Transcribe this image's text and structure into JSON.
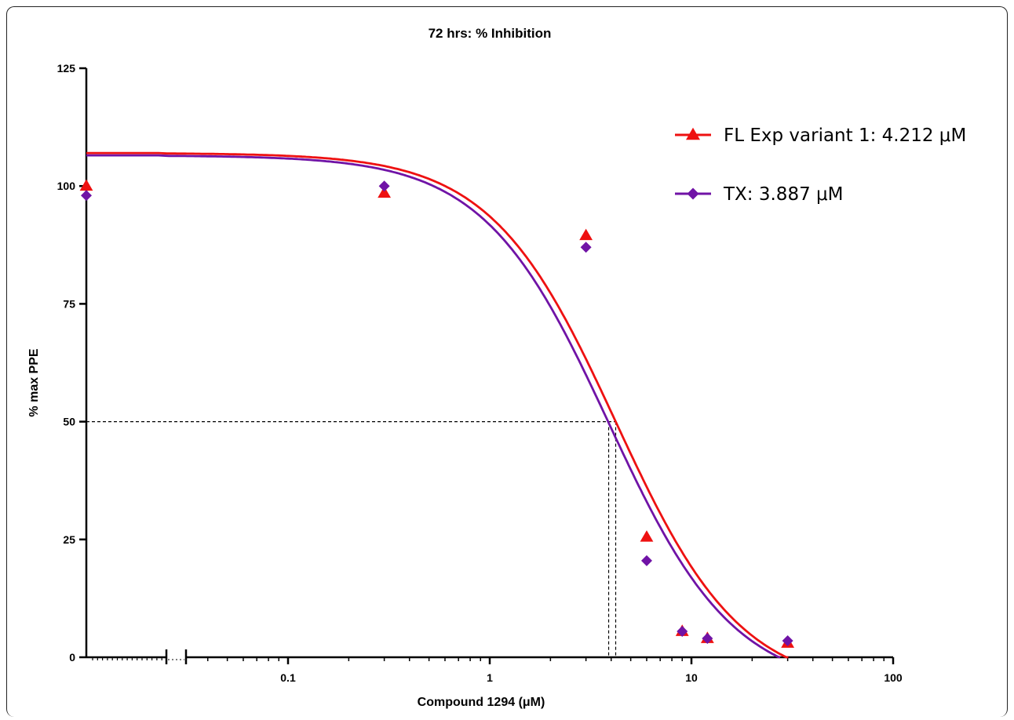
{
  "chart_data": {
    "type": "scatter",
    "title": "72 hrs: % Inhibition",
    "xlabel": "Compound 1294 (μM)",
    "ylabel": "% max PPE",
    "x_scale": "log",
    "x_axis_break": true,
    "xlim": [
      0.01,
      100
    ],
    "ylim": [
      0,
      125
    ],
    "x_ticks": [
      {
        "value": 0.1,
        "label": "0.1"
      },
      {
        "value": 1,
        "label": "1"
      },
      {
        "value": 10,
        "label": "10"
      },
      {
        "value": 100,
        "label": "100"
      }
    ],
    "y_ticks": [
      {
        "value": 0,
        "label": "0"
      },
      {
        "value": 25,
        "label": "25"
      },
      {
        "value": 50,
        "label": "50"
      },
      {
        "value": 75,
        "label": "75"
      },
      {
        "value": 100,
        "label": "100"
      },
      {
        "value": 125,
        "label": "125"
      }
    ],
    "grid": false,
    "legend_position": "top-right",
    "reference_level": 50,
    "series": [
      {
        "name": "FL Exp variant 1: 4.212 μM",
        "color": "#ee1111",
        "marker": "triangle",
        "ic50": 4.212,
        "points": [
          {
            "x": 0.01,
            "y": 100
          },
          {
            "x": 0.3,
            "y": 98.5
          },
          {
            "x": 3,
            "y": 89.5
          },
          {
            "x": 6,
            "y": 25.5
          },
          {
            "x": 9,
            "y": 5.5
          },
          {
            "x": 12,
            "y": 4
          },
          {
            "x": 30,
            "y": 3
          }
        ],
        "fit": {
          "top": 107,
          "bottom": -7,
          "ic50": 4.212,
          "hill": 1.4
        }
      },
      {
        "name": "TX: 3.887 μM",
        "color": "#7013a6",
        "marker": "diamond",
        "ic50": 3.887,
        "points": [
          {
            "x": 0.01,
            "y": 98
          },
          {
            "x": 0.3,
            "y": 100
          },
          {
            "x": 3,
            "y": 87
          },
          {
            "x": 6,
            "y": 20.5
          },
          {
            "x": 9,
            "y": 5.5
          },
          {
            "x": 12,
            "y": 4
          },
          {
            "x": 30,
            "y": 3.5
          }
        ],
        "fit": {
          "top": 106.5,
          "bottom": -7,
          "ic50": 3.887,
          "hill": 1.4
        }
      }
    ]
  }
}
